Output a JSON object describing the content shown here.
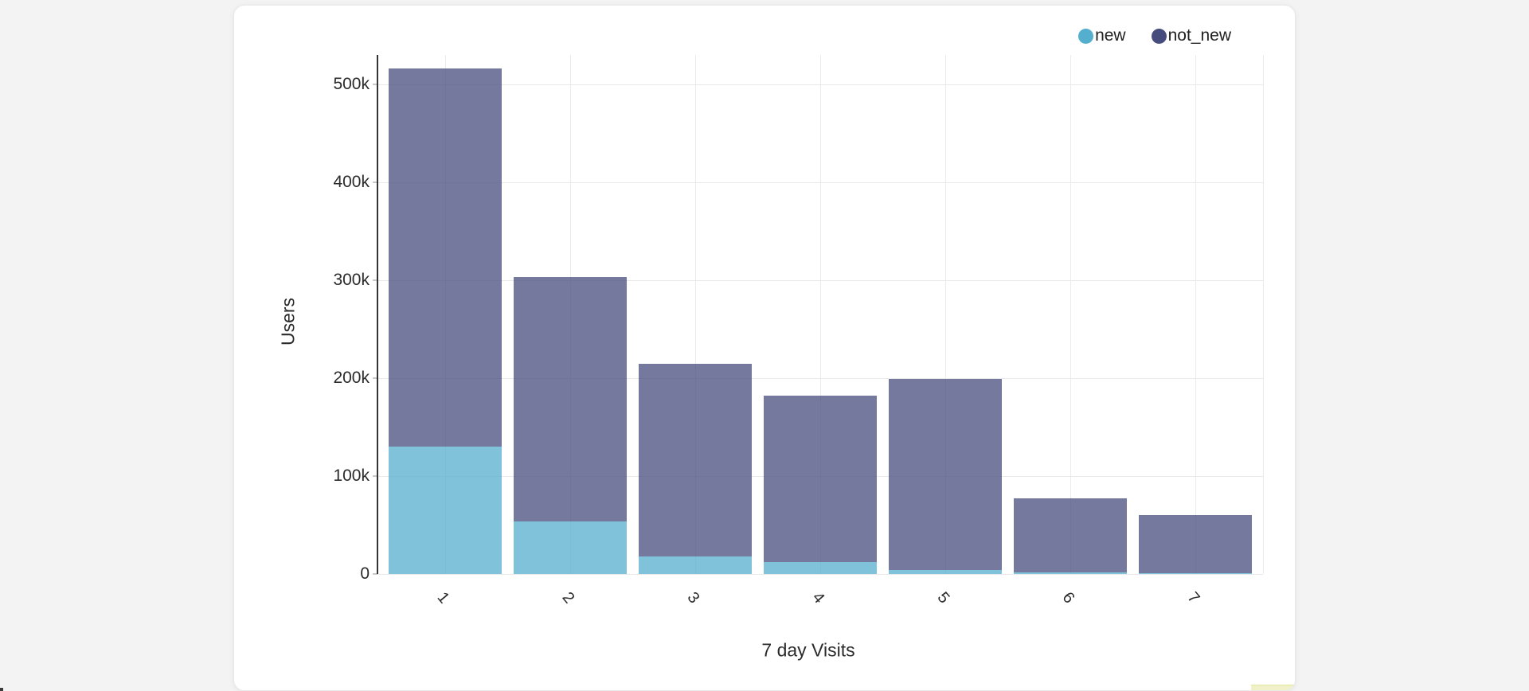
{
  "page": {
    "background": "#f3f3f3",
    "card_background": "#ffffff",
    "cropped_element_color": "#f0f1c9"
  },
  "chart_data": {
    "type": "bar",
    "stacked": true,
    "title": "",
    "xlabel": "7 day Visits",
    "ylabel": "Users",
    "categories": [
      "1",
      "2",
      "3",
      "4",
      "5",
      "6",
      "7"
    ],
    "series": [
      {
        "name": "new",
        "color": "#54aecd",
        "values": [
          130000,
          54000,
          18000,
          12000,
          4000,
          2000,
          1000
        ]
      },
      {
        "name": "not_new",
        "color": "#464c7c",
        "values": [
          386000,
          249000,
          197000,
          170000,
          195000,
          75000,
          59000
        ]
      }
    ],
    "y_ticks": [
      {
        "value": 0,
        "label": "0"
      },
      {
        "value": 100000,
        "label": "100k"
      },
      {
        "value": 200000,
        "label": "200k"
      },
      {
        "value": 300000,
        "label": "300k"
      },
      {
        "value": 400000,
        "label": "400k"
      },
      {
        "value": 500000,
        "label": "500k"
      }
    ],
    "ylim": [
      0,
      530000
    ],
    "bar_opacity": 0.75,
    "grid": true,
    "legend_position": "top-right",
    "x_tick_angle_deg": 50
  }
}
